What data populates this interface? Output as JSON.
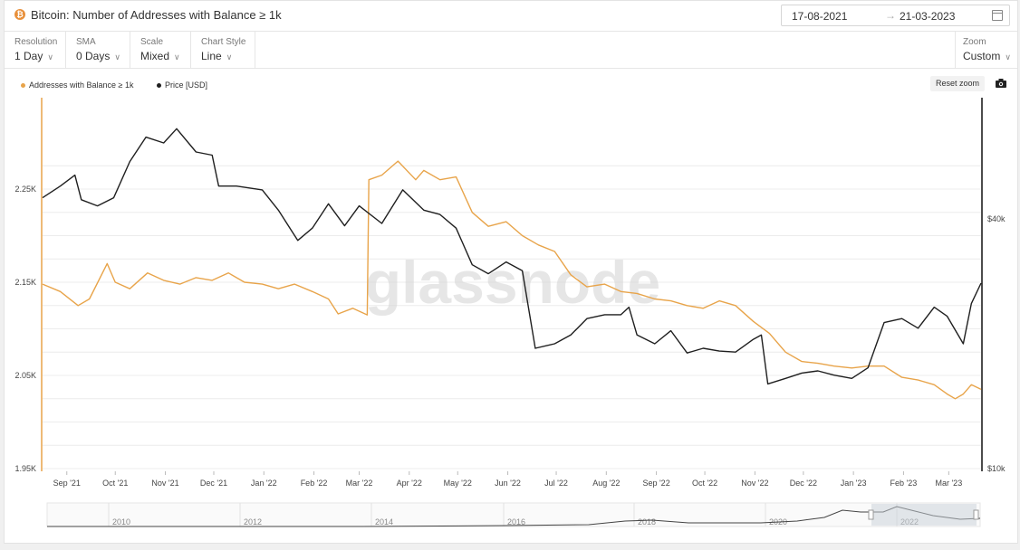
{
  "header": {
    "coin_symbol": "₿",
    "title": "Bitcoin: Number of Addresses with Balance ≥ 1k",
    "date_from": "17-08-2021",
    "date_arrow": "→",
    "date_to": "21-03-2023"
  },
  "controls": [
    {
      "label": "Resolution",
      "value": "1 Day"
    },
    {
      "label": "SMA",
      "value": "0 Days"
    },
    {
      "label": "Scale",
      "value": "Mixed"
    },
    {
      "label": "Chart Style",
      "value": "Line"
    }
  ],
  "zoom": {
    "label": "Zoom",
    "value": "Custom"
  },
  "toolbar": {
    "reset_zoom": "Reset zoom"
  },
  "watermark": "glassnode",
  "colors": {
    "addresses": "#e8a44a",
    "price": "#1f1f1f",
    "axis_right": "#111111",
    "axis_left": "#e8a44a"
  },
  "chart_data": {
    "type": "line",
    "legend_position": "top-left",
    "grid": true,
    "scale": "mixed",
    "x_range": [
      "2021-08-17",
      "2023-03-21"
    ],
    "x_ticks": [
      "Sep '21",
      "Oct '21",
      "Nov '21",
      "Dec '21",
      "Jan '22",
      "Feb '22",
      "Mar '22",
      "Apr '22",
      "May '22",
      "Jun '22",
      "Jul '22",
      "Aug '22",
      "Sep '22",
      "Oct '22",
      "Nov '22",
      "Dec '22",
      "Jan '23",
      "Feb '23",
      "Mar '23"
    ],
    "y_left": {
      "ticks": [
        "2.25K",
        "2.15K",
        "2.05K",
        "1.95K"
      ],
      "range": [
        1950,
        2300
      ]
    },
    "y_right": {
      "ticks": [
        "$40k",
        "$10k"
      ],
      "range": [
        10000,
        70000
      ],
      "scale": "log"
    },
    "series": [
      {
        "name": "Addresses with Balance ≥ 1k",
        "axis": "left",
        "color": "#e8a44a",
        "points": [
          [
            "2021-08-17",
            2148
          ],
          [
            "2021-08-28",
            2140
          ],
          [
            "2021-09-08",
            2125
          ],
          [
            "2021-09-15",
            2132
          ],
          [
            "2021-09-26",
            2170
          ],
          [
            "2021-10-01",
            2150
          ],
          [
            "2021-10-10",
            2143
          ],
          [
            "2021-10-21",
            2160
          ],
          [
            "2021-10-31",
            2152
          ],
          [
            "2021-11-10",
            2148
          ],
          [
            "2021-11-20",
            2155
          ],
          [
            "2021-11-30",
            2152
          ],
          [
            "2021-12-10",
            2160
          ],
          [
            "2021-12-20",
            2150
          ],
          [
            "2021-12-31",
            2148
          ],
          [
            "2022-01-10",
            2143
          ],
          [
            "2022-01-20",
            2148
          ],
          [
            "2022-01-31",
            2140
          ],
          [
            "2022-02-10",
            2132
          ],
          [
            "2022-02-16",
            2116
          ],
          [
            "2022-02-25",
            2122
          ],
          [
            "2022-03-06",
            2115
          ],
          [
            "2022-03-07",
            2260
          ],
          [
            "2022-03-15",
            2265
          ],
          [
            "2022-03-25",
            2280
          ],
          [
            "2022-04-05",
            2260
          ],
          [
            "2022-04-10",
            2270
          ],
          [
            "2022-04-20",
            2260
          ],
          [
            "2022-04-30",
            2263
          ],
          [
            "2022-05-10",
            2225
          ],
          [
            "2022-05-20",
            2210
          ],
          [
            "2022-05-31",
            2215
          ],
          [
            "2022-06-10",
            2200
          ],
          [
            "2022-06-20",
            2190
          ],
          [
            "2022-06-30",
            2183
          ],
          [
            "2022-07-10",
            2158
          ],
          [
            "2022-07-20",
            2145
          ],
          [
            "2022-07-31",
            2148
          ],
          [
            "2022-08-10",
            2140
          ],
          [
            "2022-08-20",
            2138
          ],
          [
            "2022-08-31",
            2132
          ],
          [
            "2022-09-10",
            2130
          ],
          [
            "2022-09-20",
            2125
          ],
          [
            "2022-09-30",
            2122
          ],
          [
            "2022-10-10",
            2130
          ],
          [
            "2022-10-20",
            2125
          ],
          [
            "2022-10-31",
            2108
          ],
          [
            "2022-11-10",
            2095
          ],
          [
            "2022-11-20",
            2075
          ],
          [
            "2022-11-30",
            2065
          ],
          [
            "2022-12-10",
            2063
          ],
          [
            "2022-12-20",
            2060
          ],
          [
            "2022-12-31",
            2058
          ],
          [
            "2023-01-10",
            2060
          ],
          [
            "2023-01-20",
            2060
          ],
          [
            "2023-01-31",
            2048
          ],
          [
            "2023-02-10",
            2045
          ],
          [
            "2023-02-20",
            2040
          ],
          [
            "2023-02-28",
            2030
          ],
          [
            "2023-03-05",
            2025
          ],
          [
            "2023-03-10",
            2030
          ],
          [
            "2023-03-15",
            2040
          ],
          [
            "2023-03-21",
            2035
          ]
        ]
      },
      {
        "name": "Price [USD]",
        "axis": "right",
        "color": "#1f1f1f",
        "points": [
          [
            "2021-08-17",
            45000
          ],
          [
            "2021-08-28",
            48000
          ],
          [
            "2021-09-06",
            51000
          ],
          [
            "2021-09-10",
            44500
          ],
          [
            "2021-09-20",
            43000
          ],
          [
            "2021-09-30",
            45000
          ],
          [
            "2021-10-10",
            55000
          ],
          [
            "2021-10-20",
            63000
          ],
          [
            "2021-10-31",
            61000
          ],
          [
            "2021-11-08",
            66000
          ],
          [
            "2021-11-20",
            58000
          ],
          [
            "2021-11-30",
            57000
          ],
          [
            "2021-12-04",
            48000
          ],
          [
            "2021-12-15",
            48000
          ],
          [
            "2021-12-31",
            47000
          ],
          [
            "2022-01-10",
            42000
          ],
          [
            "2022-01-22",
            35500
          ],
          [
            "2022-01-31",
            38000
          ],
          [
            "2022-02-10",
            43500
          ],
          [
            "2022-02-20",
            38500
          ],
          [
            "2022-03-01",
            43000
          ],
          [
            "2022-03-15",
            39000
          ],
          [
            "2022-03-28",
            47000
          ],
          [
            "2022-04-10",
            42000
          ],
          [
            "2022-04-20",
            41000
          ],
          [
            "2022-04-30",
            38000
          ],
          [
            "2022-05-10",
            31000
          ],
          [
            "2022-05-20",
            29500
          ],
          [
            "2022-05-31",
            31500
          ],
          [
            "2022-06-10",
            30000
          ],
          [
            "2022-06-18",
            19500
          ],
          [
            "2022-06-30",
            20000
          ],
          [
            "2022-07-10",
            21000
          ],
          [
            "2022-07-20",
            23000
          ],
          [
            "2022-07-31",
            23500
          ],
          [
            "2022-08-10",
            23500
          ],
          [
            "2022-08-15",
            24500
          ],
          [
            "2022-08-20",
            21000
          ],
          [
            "2022-08-31",
            20000
          ],
          [
            "2022-09-10",
            21500
          ],
          [
            "2022-09-20",
            19000
          ],
          [
            "2022-09-30",
            19500
          ],
          [
            "2022-10-10",
            19200
          ],
          [
            "2022-10-20",
            19100
          ],
          [
            "2022-10-31",
            20500
          ],
          [
            "2022-11-05",
            21000
          ],
          [
            "2022-11-09",
            16000
          ],
          [
            "2022-11-20",
            16500
          ],
          [
            "2022-11-30",
            17000
          ],
          [
            "2022-12-10",
            17200
          ],
          [
            "2022-12-20",
            16800
          ],
          [
            "2022-12-31",
            16500
          ],
          [
            "2023-01-10",
            17500
          ],
          [
            "2023-01-20",
            22500
          ],
          [
            "2023-01-31",
            23000
          ],
          [
            "2023-02-10",
            21800
          ],
          [
            "2023-02-20",
            24500
          ],
          [
            "2023-02-28",
            23300
          ],
          [
            "2023-03-10",
            20000
          ],
          [
            "2023-03-15",
            25000
          ],
          [
            "2023-03-21",
            28000
          ]
        ]
      }
    ],
    "navigator": {
      "ticks": [
        "2010",
        "2012",
        "2014",
        "2016",
        "2018",
        "2020",
        "2022"
      ]
    }
  }
}
